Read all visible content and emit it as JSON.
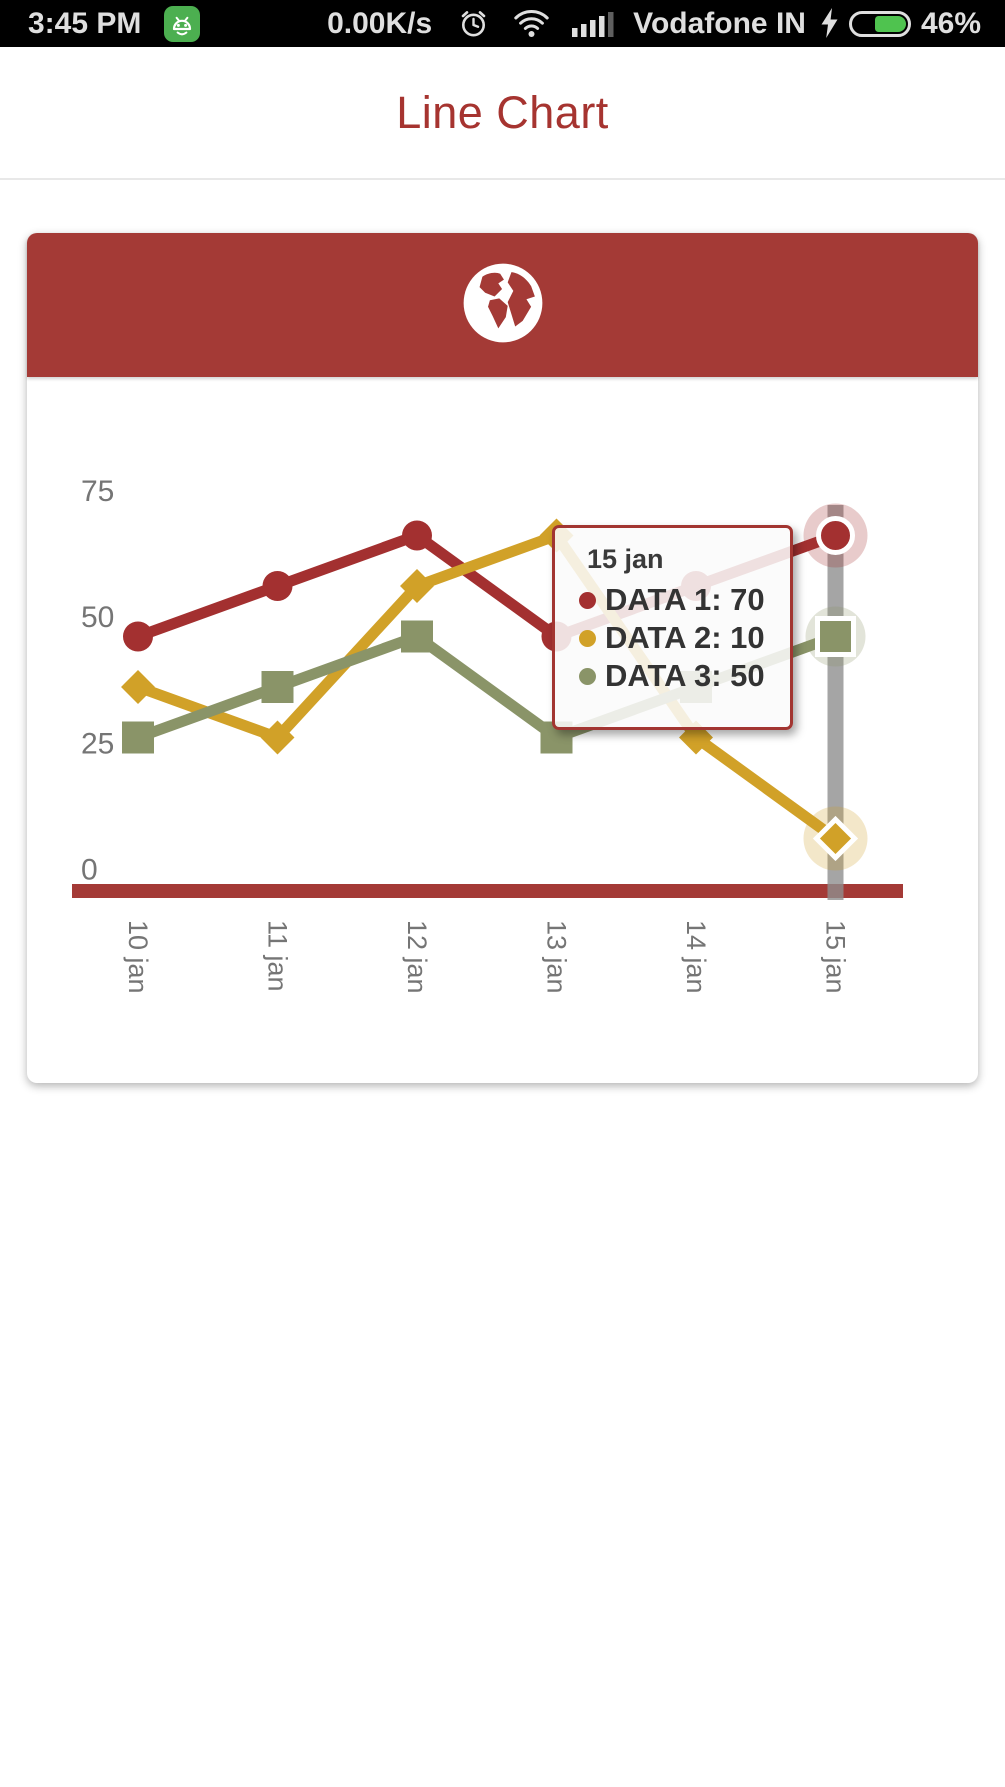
{
  "theme": {
    "status_bg": "#000000",
    "accent_red": "#a63430",
    "header_red": "#a43a36",
    "tooltip_border": "#a23531",
    "android_green": "#4caf50",
    "battery_green": "#4fc34f"
  },
  "status_bar": {
    "time": "3:45 PM",
    "network_speed": "0.00K/s",
    "carrier": "Vodafone IN",
    "battery_percent": "46%",
    "icons": [
      "android-icon",
      "alarm-icon",
      "wifi-icon",
      "signal-icon",
      "flash-icon",
      "battery-icon"
    ]
  },
  "header": {
    "title": "Line Chart"
  },
  "card": {
    "icon": "globe-icon"
  },
  "chart_data": {
    "type": "line",
    "title": "Line Chart",
    "categories": [
      "10 jan",
      "11 jan",
      "12 jan",
      "13 jan",
      "14 jan",
      "15 jan"
    ],
    "series": [
      {
        "name": "DATA 1",
        "marker": "circle",
        "color": "#a33030",
        "values": [
          50,
          60,
          70,
          50,
          60,
          70
        ]
      },
      {
        "name": "DATA 2",
        "marker": "diamond",
        "color": "#d1a128",
        "values": [
          40,
          30,
          60,
          70,
          30,
          10
        ]
      },
      {
        "name": "DATA 3",
        "marker": "square",
        "color": "#8a9468",
        "values": [
          30,
          40,
          50,
          30,
          40,
          50
        ]
      }
    ],
    "y_ticks": [
      0,
      25,
      50,
      75
    ],
    "ylim": [
      0,
      78
    ],
    "grid": false,
    "legend_position": "none",
    "highlight_index": 5,
    "highlighted_category": "15 jan",
    "colors": {
      "axis_baseline": "#a43a36",
      "tick_label": "#757575",
      "highlight_column": "#8e8e8e"
    }
  },
  "tooltip": {
    "title": "15 jan",
    "rows": [
      {
        "label": "DATA 1",
        "value": "70",
        "color": "#a33030"
      },
      {
        "label": "DATA 2",
        "value": "10",
        "color": "#d1a128"
      },
      {
        "label": "DATA 3",
        "value": "50",
        "color": "#8a9468"
      }
    ]
  }
}
